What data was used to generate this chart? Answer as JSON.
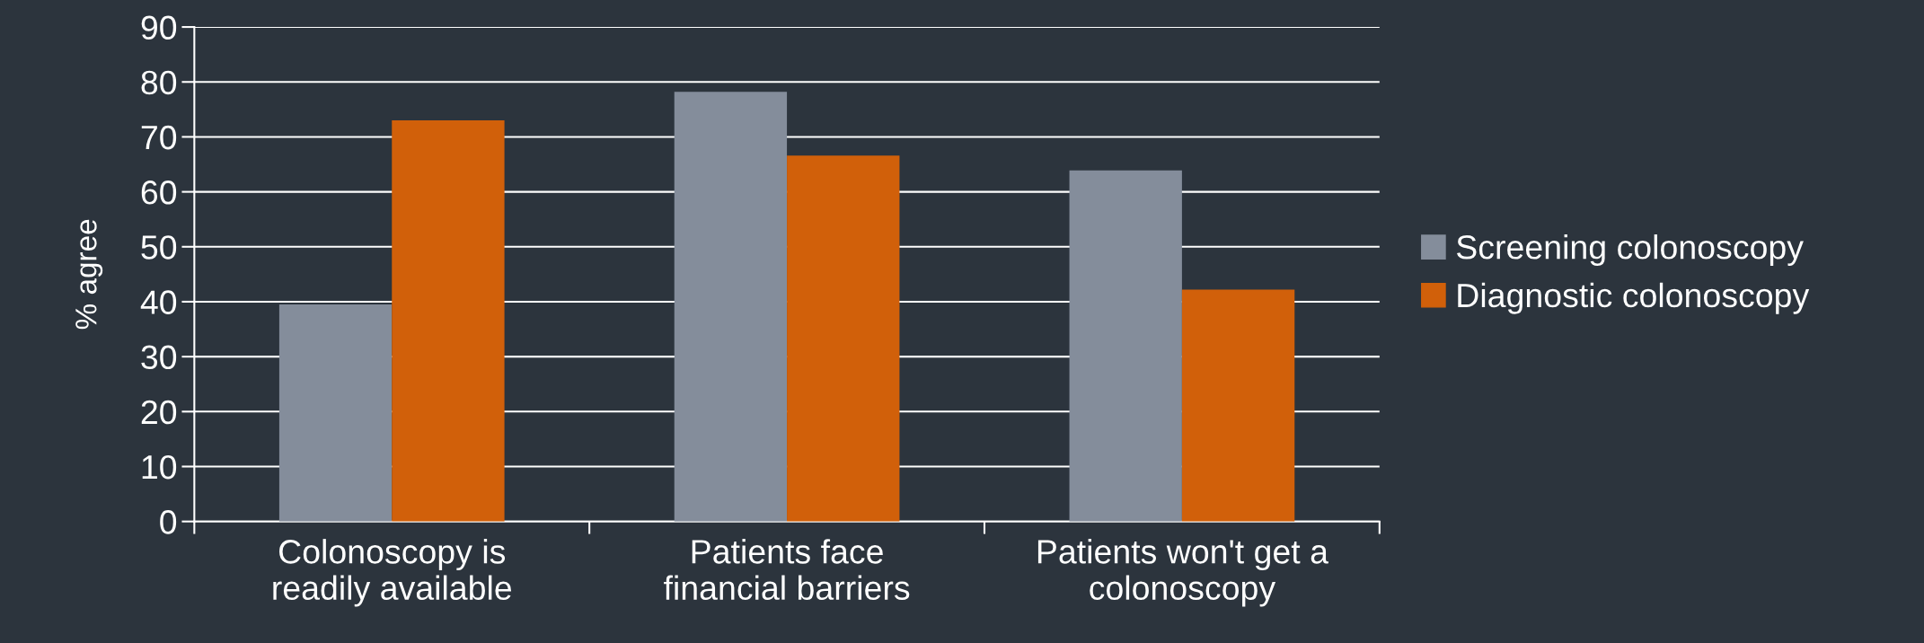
{
  "chart_data": {
    "type": "bar",
    "ylabel": "% agree",
    "categories": [
      "Colonoscopy is\nreadily available",
      "Patients face\nfinancial barriers",
      "Patients won't get a\ncolonoscopy"
    ],
    "series": [
      {
        "name": "Screening colonoscopy",
        "color": "#848d9b",
        "values": [
          39.5,
          78.2,
          63.9
        ]
      },
      {
        "name": "Diagnostic colonoscopy",
        "color": "#d1600a",
        "values": [
          73.0,
          66.6,
          42.2
        ]
      }
    ],
    "ylim": [
      0,
      90
    ],
    "yticks": [
      0,
      10,
      20,
      30,
      40,
      50,
      60,
      70,
      80,
      90
    ],
    "grid": "y",
    "legend": "right"
  }
}
